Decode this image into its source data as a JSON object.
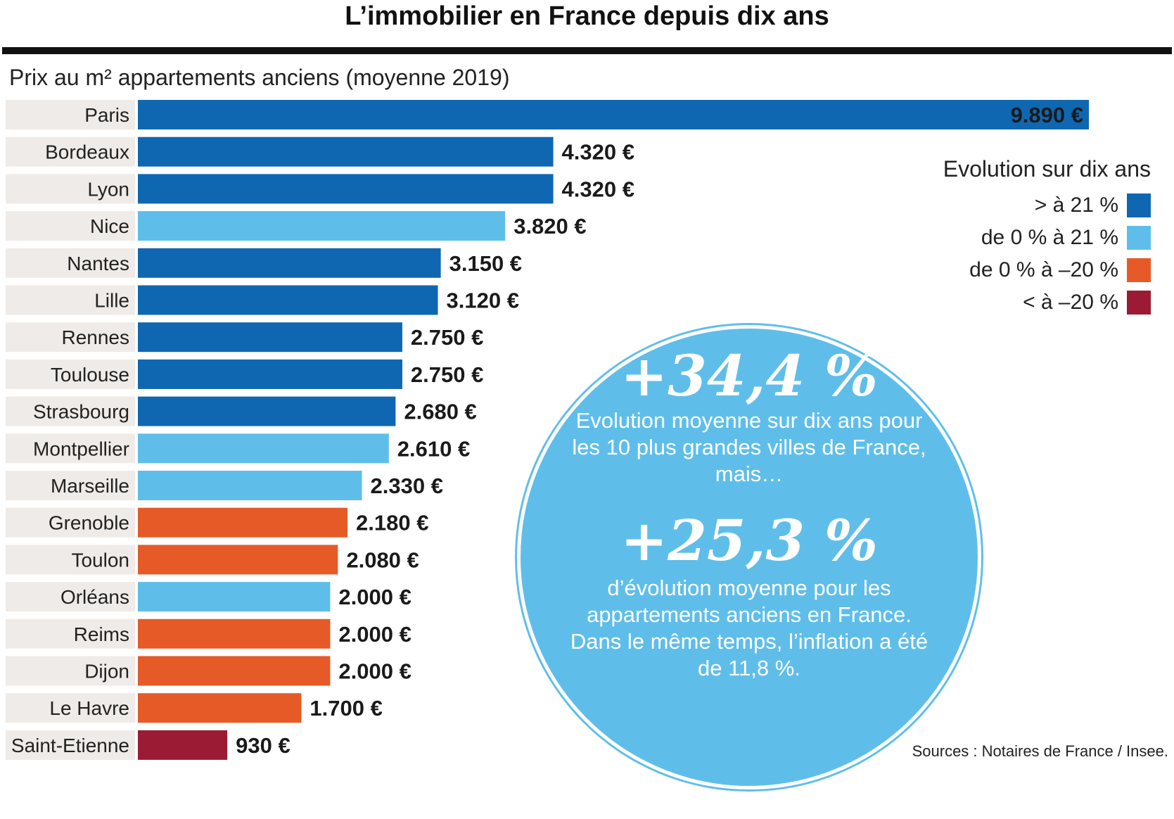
{
  "header": {
    "title": "L’immobilier en France depuis dix ans",
    "subtitle": "Prix au m² appartements anciens (moyenne 2019)"
  },
  "chart_data": {
    "type": "bar",
    "orientation": "horizontal",
    "title": "Prix au m² appartements anciens (moyenne 2019)",
    "categories": [
      "Paris",
      "Bordeaux",
      "Lyon",
      "Nice",
      "Nantes",
      "Lille",
      "Rennes",
      "Toulouse",
      "Strasbourg",
      "Montpellier",
      "Marseille",
      "Grenoble",
      "Toulon",
      "Orléans",
      "Reims",
      "Dijon",
      "Le Havre",
      "Saint-Etienne"
    ],
    "values": [
      9890,
      4320,
      4320,
      3820,
      3150,
      3120,
      2750,
      2750,
      2680,
      2610,
      2330,
      2180,
      2080,
      2000,
      2000,
      2000,
      1700,
      930
    ],
    "value_labels": [
      "9.890 €",
      "4.320 €",
      "4.320 €",
      "3.820 €",
      "3.150 €",
      "3.120 €",
      "2.750 €",
      "2.750 €",
      "2.680 €",
      "2.610 €",
      "2.330 €",
      "2.180 €",
      "2.080 €",
      "2.000 €",
      "2.000 €",
      "2.000 €",
      "1.700 €",
      "930 €"
    ],
    "groups": [
      "gt21",
      "gt21",
      "gt21",
      "0to21",
      "gt21",
      "gt21",
      "gt21",
      "gt21",
      "gt21",
      "0to21",
      "0to21",
      "0to-20",
      "0to-20",
      "0to21",
      "0to-20",
      "0to-20",
      "0to-20",
      "lt-20"
    ],
    "xlim": [
      0,
      9890
    ],
    "grid": false,
    "legend_position": "top-right"
  },
  "legend": {
    "title": "Evolution sur dix ans",
    "items": [
      {
        "key": "gt21",
        "label": "> à 21 %",
        "color": "#0f67b1"
      },
      {
        "key": "0to21",
        "label": "de 0 % à 21 %",
        "color": "#5fbee9"
      },
      {
        "key": "0to-20",
        "label": "de 0 % à –20 %",
        "color": "#e55a27"
      },
      {
        "key": "lt-20",
        "label": "< à –20 %",
        "color": "#9a1b33"
      }
    ]
  },
  "colors": {
    "row_background": "#efebe8",
    "bubble": "#5fbee9"
  },
  "callout": {
    "stat1": "+34,4 %",
    "text1": "Evolution moyenne sur dix ans pour les 10 plus grandes villes de France, mais…",
    "stat2": "+25,3 %",
    "text2": "d’évolution moyenne pour les appartements anciens en France. Dans le même temps, l’inflation a été de 11,8 %."
  },
  "source": "Sources : Notaires de France / Insee."
}
